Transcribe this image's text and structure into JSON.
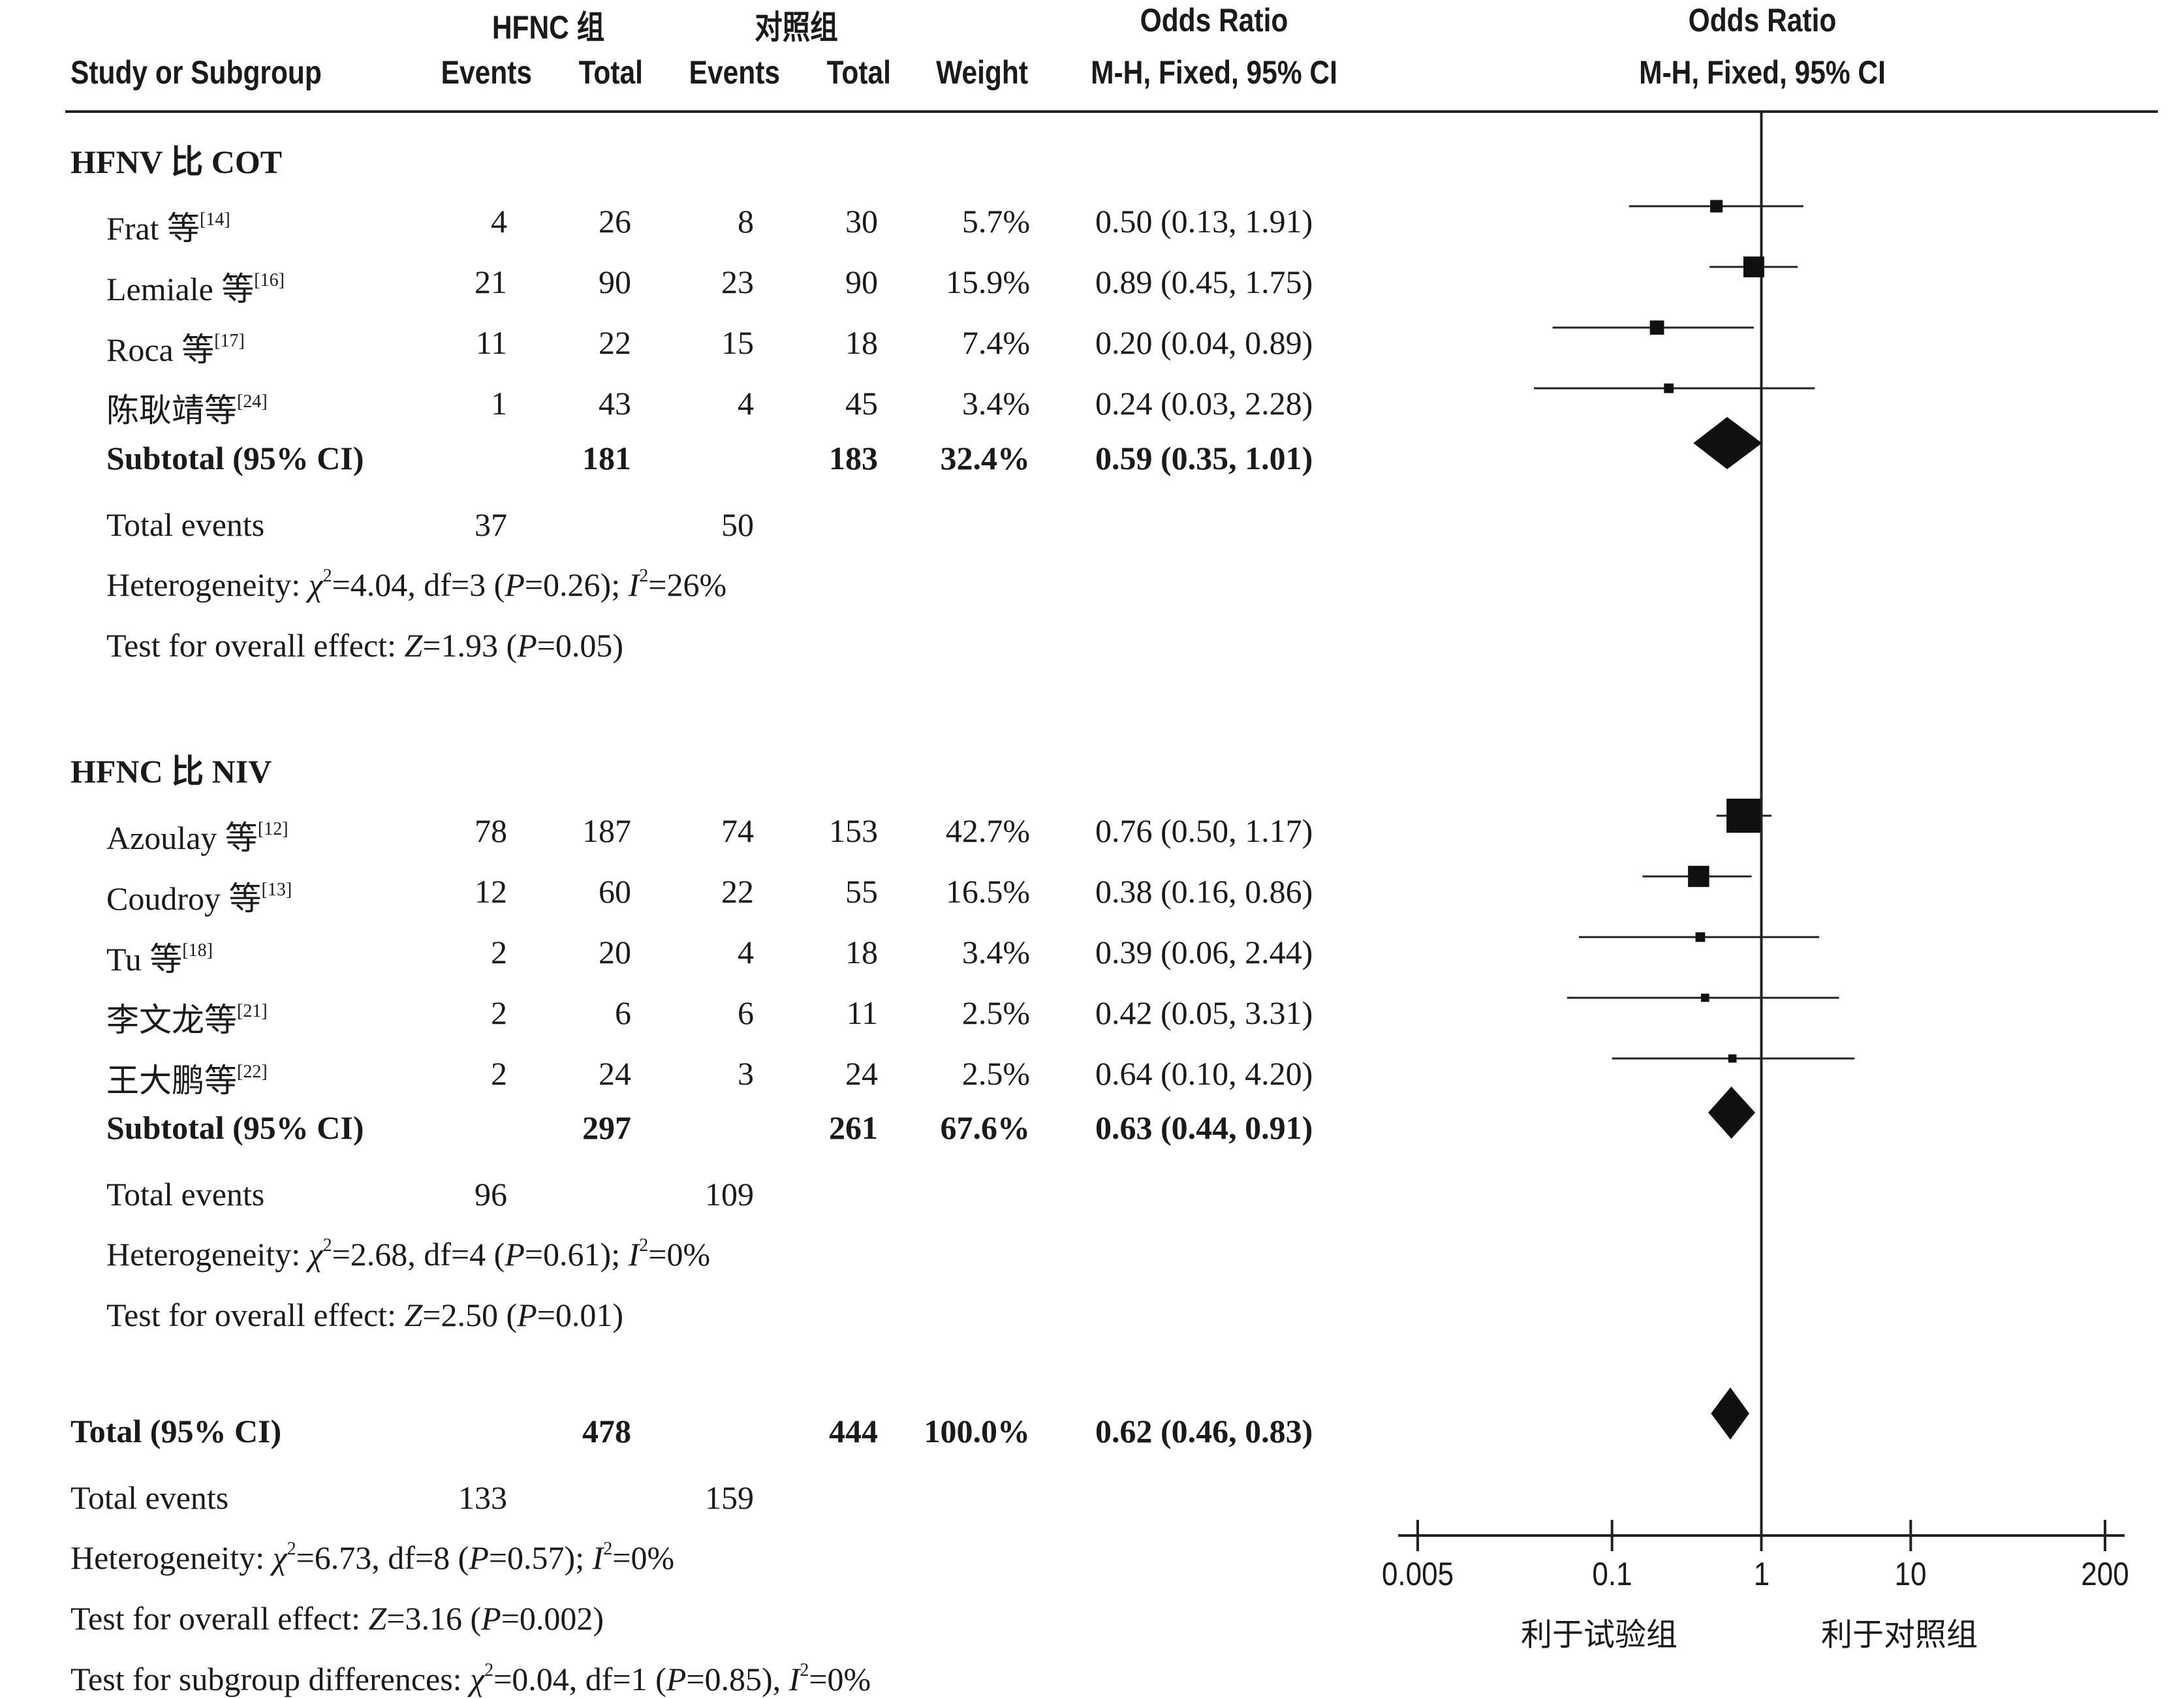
{
  "header": {
    "exp_group": "HFNC 组",
    "ctrl_group": "对照组",
    "or_title": "Odds Ratio",
    "or_method": "M-H, Fixed, 95% CI",
    "plot_title": "Odds Ratio",
    "plot_method": "M-H, Fixed, 95% CI",
    "study_col": "Study or Subgroup",
    "events": "Events",
    "total": "Total",
    "weight": "Weight"
  },
  "subgroups": [
    {
      "title": "HFNV 比 COT",
      "studies": [
        {
          "name": "Frat 等",
          "ref": "[14]",
          "e_events": "4",
          "e_total": "26",
          "c_events": "8",
          "c_total": "30",
          "weight": "5.7%",
          "ci_text": "0.50 (0.13, 1.91)"
        },
        {
          "name": "Lemiale 等",
          "ref": "[16]",
          "e_events": "21",
          "e_total": "90",
          "c_events": "23",
          "c_total": "90",
          "weight": "15.9%",
          "ci_text": "0.89 (0.45, 1.75)"
        },
        {
          "name": "Roca 等",
          "ref": "[17]",
          "e_events": "11",
          "e_total": "22",
          "c_events": "15",
          "c_total": "18",
          "weight": "7.4%",
          "ci_text": "0.20 (0.04, 0.89)"
        },
        {
          "name": "陈耿靖等",
          "ref": "[24]",
          "e_events": "1",
          "e_total": "43",
          "c_events": "4",
          "c_total": "45",
          "weight": "3.4%",
          "ci_text": "0.24 (0.03, 2.28)"
        }
      ],
      "subtotal": {
        "label": "Subtotal (95% CI)",
        "e_total": "181",
        "c_total": "183",
        "weight": "32.4%",
        "ci_text": "0.59 (0.35, 1.01)"
      },
      "total_events": {
        "label": "Total events",
        "e": "37",
        "c": "50"
      },
      "heterogeneity": {
        "prefix": "Heterogeneity: ",
        "chi_sym": "χ",
        "chi_sup": "2",
        "chi_rest": "=4.04, df=3 (",
        "p_sym": "P",
        "p_val": "=0.26); ",
        "i_sym": "I",
        "i_sup": "2",
        "i_val": "=26%"
      },
      "overall": {
        "prefix": "Test for overall effect: ",
        "z_sym": "Z",
        "z_val": "=1.93 (",
        "p_sym": "P",
        "p_val": "=0.05)"
      }
    },
    {
      "title": "HFNC 比 NIV",
      "studies": [
        {
          "name": "Azoulay 等",
          "ref": "[12]",
          "e_events": "78",
          "e_total": "187",
          "c_events": "74",
          "c_total": "153",
          "weight": "42.7%",
          "ci_text": "0.76 (0.50, 1.17)"
        },
        {
          "name": "Coudroy 等",
          "ref": "[13]",
          "e_events": "12",
          "e_total": "60",
          "c_events": "22",
          "c_total": "55",
          "weight": "16.5%",
          "ci_text": "0.38 (0.16, 0.86)"
        },
        {
          "name": "Tu 等",
          "ref": "[18]",
          "e_events": "2",
          "e_total": "20",
          "c_events": "4",
          "c_total": "18",
          "weight": "3.4%",
          "ci_text": "0.39 (0.06, 2.44)"
        },
        {
          "name": "李文龙等",
          "ref": "[21]",
          "e_events": "2",
          "e_total": "6",
          "c_events": "6",
          "c_total": "11",
          "weight": "2.5%",
          "ci_text": "0.42 (0.05, 3.31)"
        },
        {
          "name": "王大鹏等",
          "ref": "[22]",
          "e_events": "2",
          "e_total": "24",
          "c_events": "3",
          "c_total": "24",
          "weight": "2.5%",
          "ci_text": "0.64 (0.10, 4.20)"
        }
      ],
      "subtotal": {
        "label": "Subtotal (95% CI)",
        "e_total": "297",
        "c_total": "261",
        "weight": "67.6%",
        "ci_text": "0.63 (0.44, 0.91)"
      },
      "total_events": {
        "label": "Total events",
        "e": "96",
        "c": "109"
      },
      "heterogeneity": {
        "prefix": "Heterogeneity: ",
        "chi_sym": "χ",
        "chi_sup": "2",
        "chi_rest": "=2.68, df=4 (",
        "p_sym": "P",
        "p_val": "=0.61); ",
        "i_sym": "I",
        "i_sup": "2",
        "i_val": "=0%"
      },
      "overall": {
        "prefix": "Test for overall effect: ",
        "z_sym": "Z",
        "z_val": "=2.50 (",
        "p_sym": "P",
        "p_val": "=0.01)"
      }
    }
  ],
  "total": {
    "label": "Total (95% CI)",
    "e_total": "478",
    "c_total": "444",
    "weight": "100.0%",
    "ci_text": "0.62 (0.46, 0.83)"
  },
  "total_events": {
    "label": "Total events",
    "e": "133",
    "c": "159"
  },
  "heterogeneity": {
    "prefix": "Heterogeneity: ",
    "chi_sym": "χ",
    "chi_sup": "2",
    "chi_rest": "=6.73, df=8 (",
    "p_sym": "P",
    "p_val": "=0.57); ",
    "i_sym": "I",
    "i_sup": "2",
    "i_val": "=0%"
  },
  "overall": {
    "prefix": "Test for overall effect: ",
    "z_sym": "Z",
    "z_val": "=3.16 (",
    "p_sym": "P",
    "p_val": "=0.002)"
  },
  "subgroup_diff": {
    "prefix": "Test for subgroup differences: ",
    "chi_sym": "χ",
    "chi_sup": "2",
    "chi_rest": "=0.04, df=1 (",
    "p_sym": "P",
    "p_val": "=0.85), ",
    "i_sym": "I",
    "i_sup": "2",
    "i_val": "=0%"
  },
  "axis": {
    "ticks": [
      "0.005",
      "0.1",
      "1",
      "10",
      "200"
    ],
    "favours_left": "利于试验组",
    "favours_right": "利于对照组"
  },
  "chart_data": {
    "type": "forest",
    "scale": "log",
    "xlim": [
      0.005,
      200
    ],
    "reference_line": 1,
    "rows": [
      {
        "study": "Frat 等",
        "or": 0.5,
        "lo": 0.13,
        "hi": 1.91,
        "weight": 5.7
      },
      {
        "study": "Lemiale 等",
        "or": 0.89,
        "lo": 0.45,
        "hi": 1.75,
        "weight": 15.9
      },
      {
        "study": "Roca 等",
        "or": 0.2,
        "lo": 0.04,
        "hi": 0.89,
        "weight": 7.4
      },
      {
        "study": "陈耿靖等",
        "or": 0.24,
        "lo": 0.03,
        "hi": 2.28,
        "weight": 3.4
      },
      {
        "study": "Subtotal (95% CI)",
        "or": 0.59,
        "lo": 0.35,
        "hi": 1.01,
        "diamond": true
      },
      {
        "study": "Azoulay 等",
        "or": 0.76,
        "lo": 0.5,
        "hi": 1.17,
        "weight": 42.7
      },
      {
        "study": "Coudroy 等",
        "or": 0.38,
        "lo": 0.16,
        "hi": 0.86,
        "weight": 16.5
      },
      {
        "study": "Tu 等",
        "or": 0.39,
        "lo": 0.06,
        "hi": 2.44,
        "weight": 3.4
      },
      {
        "study": "李文龙等",
        "or": 0.42,
        "lo": 0.05,
        "hi": 3.31,
        "weight": 2.5
      },
      {
        "study": "王大鹏等",
        "or": 0.64,
        "lo": 0.1,
        "hi": 4.2,
        "weight": 2.5
      },
      {
        "study": "Subtotal (95% CI)",
        "or": 0.63,
        "lo": 0.44,
        "hi": 0.91,
        "diamond": true
      },
      {
        "study": "Total (95% CI)",
        "or": 0.62,
        "lo": 0.46,
        "hi": 0.83,
        "diamond": true
      }
    ]
  }
}
